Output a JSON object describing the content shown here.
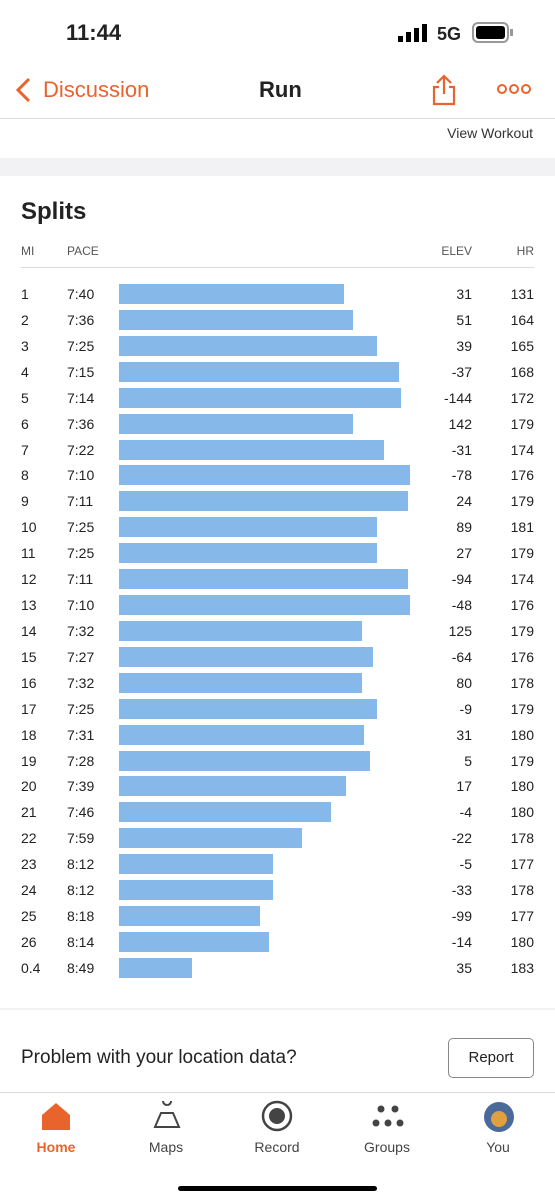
{
  "status": {
    "time": "11:44",
    "network": "5G"
  },
  "nav": {
    "back": "Discussion",
    "title": "Run",
    "link": "View Workout"
  },
  "splits": {
    "title": "Splits",
    "columns": [
      "MI",
      "PACE",
      "ELEV",
      "HR"
    ],
    "rows": [
      {
        "mi": 1,
        "pace": {
          "value": 460,
          "label": "7:40"
        },
        "elev": 31,
        "hr": 131
      },
      {
        "mi": 2,
        "pace": {
          "value": 456,
          "label": "7:36"
        },
        "elev": 51,
        "hr": 164
      },
      {
        "mi": 3,
        "pace": {
          "value": 445,
          "label": "7:25"
        },
        "elev": 39,
        "hr": 165
      },
      {
        "mi": 4,
        "pace": {
          "value": 435,
          "label": "7:15"
        },
        "elev": -37,
        "hr": 168
      },
      {
        "mi": 5,
        "pace": {
          "value": 434,
          "label": "7:14"
        },
        "elev": -144,
        "hr": 172
      },
      {
        "mi": 6,
        "pace": {
          "value": 456,
          "label": "7:36"
        },
        "elev": 142,
        "hr": 179
      },
      {
        "mi": 7,
        "pace": {
          "value": 442,
          "label": "7:22"
        },
        "elev": -31,
        "hr": 174
      },
      {
        "mi": 8,
        "pace": {
          "value": 430,
          "label": "7:10"
        },
        "elev": -78,
        "hr": 176
      },
      {
        "mi": 9,
        "pace": {
          "value": 431,
          "label": "7:11"
        },
        "elev": 24,
        "hr": 179
      },
      {
        "mi": 10,
        "pace": {
          "value": 445,
          "label": "7:25"
        },
        "elev": 89,
        "hr": 181
      },
      {
        "mi": 11,
        "pace": {
          "value": 445,
          "label": "7:25"
        },
        "elev": 27,
        "hr": 179
      },
      {
        "mi": 12,
        "pace": {
          "value": 431,
          "label": "7:11"
        },
        "elev": -94,
        "hr": 174
      },
      {
        "mi": 13,
        "pace": {
          "value": 430,
          "label": "7:10"
        },
        "elev": -48,
        "hr": 176
      },
      {
        "mi": 14,
        "pace": {
          "value": 452,
          "label": "7:32"
        },
        "elev": 125,
        "hr": 179
      },
      {
        "mi": 15,
        "pace": {
          "value": 447,
          "label": "7:27"
        },
        "elev": -64,
        "hr": 176
      },
      {
        "mi": 16,
        "pace": {
          "value": 452,
          "label": "7:32"
        },
        "elev": 80,
        "hr": 178
      },
      {
        "mi": 17,
        "pace": {
          "value": 445,
          "label": "7:25"
        },
        "elev": -9,
        "hr": 179
      },
      {
        "mi": 18,
        "pace": {
          "value": 451,
          "label": "7:31"
        },
        "elev": 31,
        "hr": 180
      },
      {
        "mi": 19,
        "pace": {
          "value": 448,
          "label": "7:28"
        },
        "elev": 5,
        "hr": 179
      },
      {
        "mi": 20,
        "pace": {
          "value": 459,
          "label": "7:39"
        },
        "elev": 17,
        "hr": 180
      },
      {
        "mi": 21,
        "pace": {
          "value": 466,
          "label": "7:46"
        },
        "elev": -4,
        "hr": 180
      },
      {
        "mi": 22,
        "pace": {
          "value": 479,
          "label": "7:59"
        },
        "elev": -22,
        "hr": 178
      },
      {
        "mi": 23,
        "pace": {
          "value": 492,
          "label": "8:12"
        },
        "elev": -5,
        "hr": 177
      },
      {
        "mi": 24,
        "pace": {
          "value": 492,
          "label": "8:12"
        },
        "elev": -33,
        "hr": 178
      },
      {
        "mi": 25,
        "pace": {
          "value": 498,
          "label": "8:18"
        },
        "elev": -99,
        "hr": 177
      },
      {
        "mi": 26,
        "pace": {
          "value": 494,
          "label": "8:14"
        },
        "elev": -14,
        "hr": 180
      },
      {
        "mi": 0.4,
        "pace": {
          "value": 529,
          "label": "8:49"
        },
        "elev": 35,
        "hr": 183
      }
    ]
  },
  "problem": {
    "text": "Problem with your location data?",
    "button": "Report"
  },
  "tabs": [
    "Home",
    "Maps",
    "Record",
    "Groups",
    "You"
  ]
}
